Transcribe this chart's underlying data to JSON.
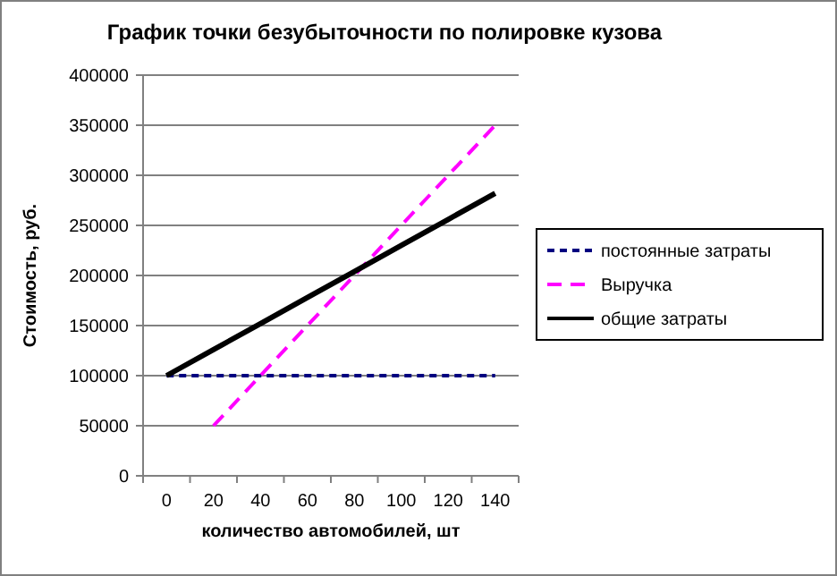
{
  "chart_data": {
    "type": "line",
    "title": "График точки безубыточности по полировке кузова",
    "xlabel": "количество автомобилей, шт",
    "ylabel": "Стоимость, руб.",
    "categories": [
      "0",
      "20",
      "40",
      "60",
      "80",
      "100",
      "120",
      "140"
    ],
    "series": [
      {
        "name": "постоянные затраты",
        "color": "#000080",
        "line_style": "dashed",
        "values": [
          100000,
          100000,
          100000,
          100000,
          100000,
          100000,
          100000,
          100000
        ]
      },
      {
        "name": "Выручка",
        "color": "#ff00ff",
        "line_style": "dashed",
        "values": [
          null,
          50000,
          100000,
          150000,
          200000,
          250000,
          300000,
          350000
        ]
      },
      {
        "name": "общие затраты",
        "color": "#000000",
        "line_style": "solid",
        "values": [
          100000,
          126000,
          152000,
          178000,
          204000,
          230000,
          256000,
          282000
        ]
      }
    ],
    "ylim": [
      0,
      400000
    ],
    "yticks": [
      0,
      50000,
      100000,
      150000,
      200000,
      250000,
      300000,
      350000,
      400000
    ],
    "grid": "y",
    "legend": "right",
    "marker": "none"
  }
}
